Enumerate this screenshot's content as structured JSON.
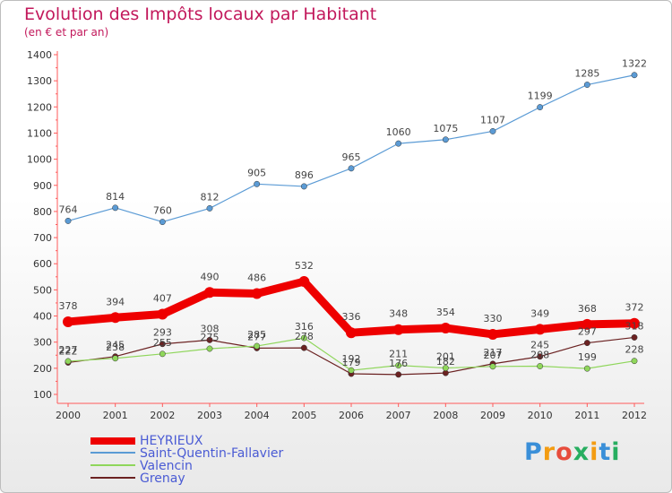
{
  "chart_data": {
    "type": "line",
    "title": "Evolution des Impôts locaux par Habitant",
    "subtitle": "(en € et par an)",
    "categories": [
      "2000",
      "2001",
      "2002",
      "2003",
      "2004",
      "2005",
      "2006",
      "2007",
      "2008",
      "2009",
      "2010",
      "2011",
      "2012"
    ],
    "yticks": [
      100,
      200,
      300,
      400,
      500,
      600,
      700,
      800,
      900,
      1000,
      1100,
      1200,
      1300,
      1400
    ],
    "ylim": [
      100,
      1400
    ],
    "grid": false,
    "legend_position": "bottom-left",
    "series": [
      {
        "name": "HEYRIEUX",
        "color": "#ee0000",
        "values": [
          378,
          394,
          407,
          490,
          486,
          532,
          336,
          348,
          354,
          330,
          349,
          368,
          372
        ]
      },
      {
        "name": "Saint-Quentin-Fallavier",
        "color": "#5b9bd5",
        "values": [
          764,
          814,
          760,
          812,
          905,
          896,
          965,
          1060,
          1075,
          1107,
          1199,
          1285,
          1322
        ]
      },
      {
        "name": "Valencin",
        "color": "#8fd65b",
        "values": [
          227,
          238,
          255,
          275,
          285,
          316,
          192,
          211,
          201,
          207,
          208,
          199,
          228
        ]
      },
      {
        "name": "Grenay",
        "color": "#6b2222",
        "values": [
          222,
          245,
          293,
          308,
          277,
          278,
          179,
          176,
          182,
          217,
          245,
          297,
          318
        ]
      }
    ]
  },
  "legend": {
    "items": [
      "HEYRIEUX",
      "Saint-Quentin-Fallavier",
      "Valencin",
      "Grenay"
    ]
  },
  "logo": {
    "text": "Proxiti"
  }
}
